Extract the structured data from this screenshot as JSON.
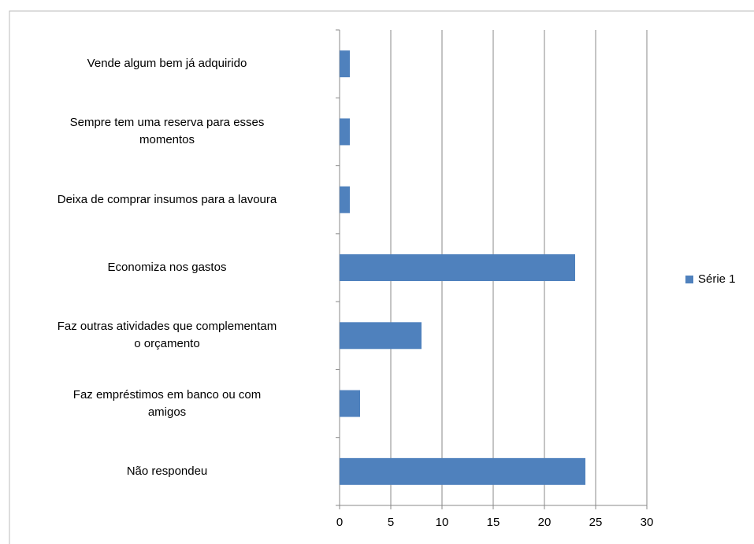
{
  "chart_data": {
    "type": "bar",
    "orientation": "horizontal",
    "categories": [
      "Vende algum bem já adquirido",
      "Sempre tem uma reserva para esses\nmomentos",
      "Deixa de comprar insumos para a lavoura",
      "Economiza nos gastos",
      "Faz outras atividades que complementam\no orçamento",
      "Faz empréstimos em banco ou com\namigos",
      "Não respondeu"
    ],
    "series": [
      {
        "name": "Série 1",
        "color": "#4f81bd",
        "values": [
          1,
          1,
          1,
          23,
          8,
          2,
          24
        ]
      }
    ],
    "xlim": [
      0,
      30
    ],
    "xticks": [
      0,
      5,
      10,
      15,
      20,
      25,
      30
    ],
    "grid": true,
    "legend": "right"
  }
}
